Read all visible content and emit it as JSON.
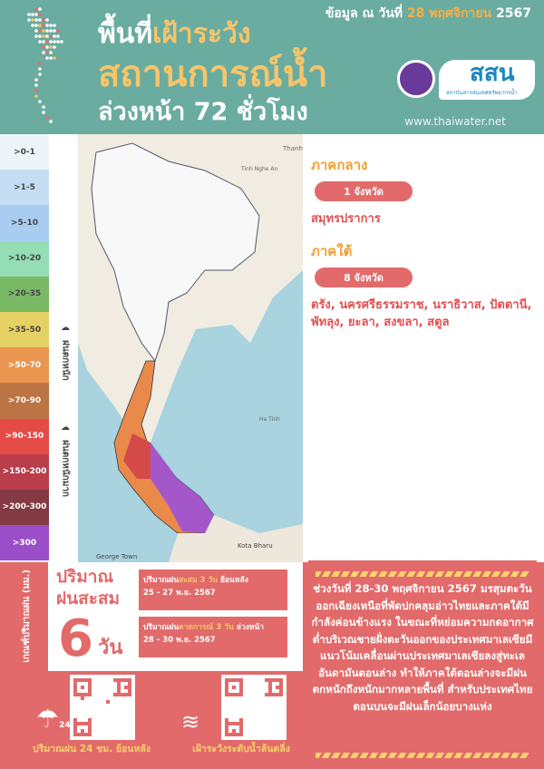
{
  "header": {
    "title_1a": "พื้นที่",
    "title_1b": "เฝ้าระวัง",
    "title_2": "สถานการณ์น้ำ",
    "title_3": "ล่วงหน้า 72 ชั่วโมง",
    "date_prefix": "ข้อมูล ณ วันที่",
    "date_value": "28 พฤศจิกายน",
    "date_year": "2567",
    "website": "www.thaiwater.net",
    "logo_text": "สสน",
    "logo_sub": "สถาบันสารสนเทศทรัพยากรน้ำ"
  },
  "legend": [
    {
      "label": ">0-1",
      "color": "#eef5fa",
      "text": "#444"
    },
    {
      "label": ">1-5",
      "color": "#c6def4",
      "text": "#444"
    },
    {
      "label": ">5-10",
      "color": "#a9cdf1",
      "text": "#444"
    },
    {
      "label": ">10-20",
      "color": "#94ddb5",
      "text": "#444"
    },
    {
      "label": ">20-35",
      "color": "#7aba66",
      "text": "#444"
    },
    {
      "label": ">35-50",
      "color": "#e6d264",
      "text": "#444"
    },
    {
      "label": ">50-70",
      "color": "#ea9650",
      "text": "#fff"
    },
    {
      "label": ">70-90",
      "color": "#bc7444",
      "text": "#fff"
    },
    {
      "label": ">90-150",
      "color": "#e44a46",
      "text": "#fff"
    },
    {
      "label": ">150-200",
      "color": "#b93e4a",
      "text": "#fff"
    },
    {
      "label": ">200-300",
      "color": "#843a42",
      "text": "#fff"
    },
    {
      "label": ">300",
      "color": "#9a4fc8",
      "text": "#fff"
    }
  ],
  "legend_groups": {
    "heavy": "ฝนตกหนัก",
    "very_heavy": "ฝนตกหนักมาก"
  },
  "map_labels": {
    "thanh": "Thanh",
    "nghe_an": "Tinh Nghe An",
    "ha_tinh": "Ha Tinh",
    "george_town": "George Town",
    "kota_bharu": "Kota Bharu"
  },
  "regions": [
    {
      "name": "ภาคกลาง",
      "count": "1 จังหวัด",
      "provinces": "สมุทรปราการ"
    },
    {
      "name": "ภาคใต้",
      "count": "8 จังหวัด",
      "provinces": "ตรัง, นครศรีธรรมราช, นราธิวาส, ปัตตานี, พัทลุง, ยะลา, สงขลา, สตูล"
    }
  ],
  "accumulated": {
    "title_1": "ปริมาณ",
    "title_2": "ฝนสะสม",
    "days": "6",
    "days_unit": "วัน",
    "past": {
      "pre": "ปริมาณฝน",
      "hl": "สะสม 3 วัน",
      "post": " ย้อนหลัง",
      "dates": "25 - 27 พ.ย. 2567"
    },
    "forecast": {
      "pre": "ปริมาณฝน",
      "hl": "คาดการณ์ 3 วัน",
      "post": " ล่วงหน้า",
      "dates": "28 - 30 พ.ย. 2567"
    }
  },
  "side_label": "เกณฑ์ปริมาณฝน (มม.)",
  "qr": {
    "rain24": "ปริมาณฝน 24 ชม. ย้อนหลัง",
    "rain24_badge": "24",
    "flood": "เฝ้าระวังระดับน้ำล้นตลิ่ง"
  },
  "summary": "ช่วงวันที่ 28-30 พฤศจิกายน 2567 มรสุมตะวันออกเฉียงเหนือที่พัดปกคลุมอ่าวไทยและภาคใต้มีกำลังค่อนข้างแรง ในขณะที่หย่อมความกดอากาศต่ำบริเวณชายฝั่งตะวันออกของประเทศมาเลเซียมีแนวโน้มเคลื่อนผ่านประเทศมาเลเซียลงสู่ทะเลอันดามันตอนล่าง ทำให้ภาคใต้ตอนล่างจะมีฝนตกหนักถึงหนักมากหลายพื้นที่ สำหรับประเทศไทยตอนบนจะมีฝนเล็กน้อยบางแห่ง"
}
